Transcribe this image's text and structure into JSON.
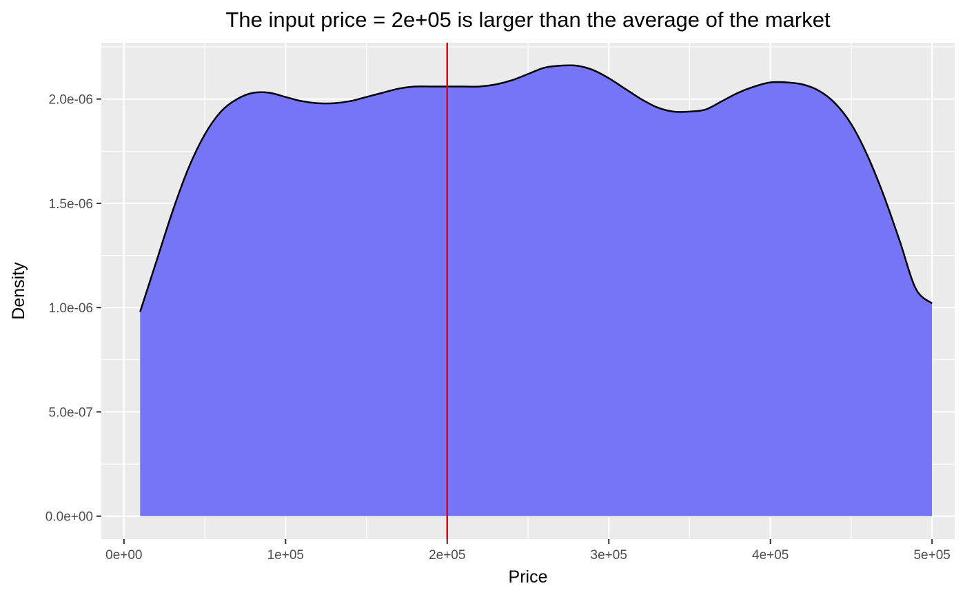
{
  "chart_data": {
    "type": "area",
    "title": "The input price = 2e+05 is larger than the average of the market",
    "xlabel": "Price",
    "ylabel": "Density",
    "xlim": [
      -14000,
      514000
    ],
    "ylim": [
      -1.1e-07,
      2.27e-06
    ],
    "x_ticks": [
      {
        "value": 0,
        "label": "0e+00"
      },
      {
        "value": 100000,
        "label": "1e+05"
      },
      {
        "value": 200000,
        "label": "2e+05"
      },
      {
        "value": 300000,
        "label": "3e+05"
      },
      {
        "value": 400000,
        "label": "4e+05"
      },
      {
        "value": 500000,
        "label": "5e+05"
      }
    ],
    "y_ticks": [
      {
        "value": 0,
        "label": "0.0e+00"
      },
      {
        "value": 5e-07,
        "label": "5.0e-07"
      },
      {
        "value": 1e-06,
        "label": "1.0e-06"
      },
      {
        "value": 1.5e-06,
        "label": "1.5e-06"
      },
      {
        "value": 2e-06,
        "label": "2.0e-06"
      }
    ],
    "series": [
      {
        "x": [
          10000,
          20000,
          30000,
          40000,
          50000,
          60000,
          70000,
          80000,
          90000,
          100000,
          110000,
          120000,
          130000,
          140000,
          150000,
          160000,
          170000,
          180000,
          190000,
          200000,
          210000,
          220000,
          230000,
          240000,
          250000,
          260000,
          270000,
          280000,
          290000,
          300000,
          310000,
          320000,
          330000,
          340000,
          350000,
          360000,
          370000,
          380000,
          390000,
          400000,
          410000,
          420000,
          430000,
          440000,
          450000,
          460000,
          470000,
          480000,
          490000,
          500000
        ],
        "y": [
          9.8e-07,
          1.22e-06,
          1.46e-06,
          1.67e-06,
          1.83e-06,
          1.94e-06,
          2e-06,
          2.03e-06,
          2.03e-06,
          2.01e-06,
          1.99e-06,
          1.98e-06,
          1.98e-06,
          1.99e-06,
          2.01e-06,
          2.03e-06,
          2.05e-06,
          2.06e-06,
          2.06e-06,
          2.06e-06,
          2.06e-06,
          2.06e-06,
          2.07e-06,
          2.09e-06,
          2.12e-06,
          2.15e-06,
          2.16e-06,
          2.16e-06,
          2.14e-06,
          2.1e-06,
          2.05e-06,
          2e-06,
          1.96e-06,
          1.94e-06,
          1.94e-06,
          1.95e-06,
          1.99e-06,
          2.03e-06,
          2.06e-06,
          2.08e-06,
          2.08e-06,
          2.07e-06,
          2.04e-06,
          1.98e-06,
          1.88e-06,
          1.73e-06,
          1.54e-06,
          1.32e-06,
          1.09e-06,
          1.02e-06
        ],
        "fill": "#7575F5",
        "line_color": "#000000"
      }
    ],
    "reference_line": {
      "x": 200000,
      "color": "#E8000B"
    },
    "grid": true,
    "panel_background": "#EBEBEB"
  }
}
